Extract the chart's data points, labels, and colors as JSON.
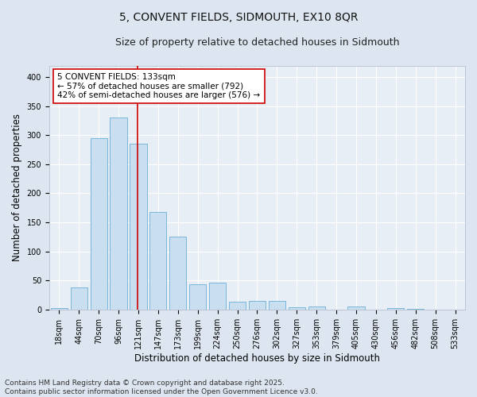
{
  "title_line1": "5, CONVENT FIELDS, SIDMOUTH, EX10 8QR",
  "title_line2": "Size of property relative to detached houses in Sidmouth",
  "xlabel": "Distribution of detached houses by size in Sidmouth",
  "ylabel": "Number of detached properties",
  "categories": [
    "18sqm",
    "44sqm",
    "70sqm",
    "96sqm",
    "121sqm",
    "147sqm",
    "173sqm",
    "199sqm",
    "224sqm",
    "250sqm",
    "276sqm",
    "302sqm",
    "327sqm",
    "353sqm",
    "379sqm",
    "405sqm",
    "430sqm",
    "456sqm",
    "482sqm",
    "508sqm",
    "533sqm"
  ],
  "values": [
    2,
    38,
    295,
    330,
    285,
    168,
    125,
    44,
    46,
    14,
    15,
    15,
    4,
    5,
    0,
    5,
    0,
    2,
    1,
    0,
    0
  ],
  "bar_color": "#c9dff0",
  "bar_edge_color": "#6aaed6",
  "vline_color": "#cc0000",
  "vline_pos": 3.96,
  "annotation_text": "5 CONVENT FIELDS: 133sqm\n← 57% of detached houses are smaller (792)\n42% of semi-detached houses are larger (576) →",
  "annotation_box_facecolor": "#ffffff",
  "annotation_box_edgecolor": "#cc0000",
  "ylim": [
    0,
    420
  ],
  "yticks": [
    0,
    50,
    100,
    150,
    200,
    250,
    300,
    350,
    400
  ],
  "fig_bg_color": "#dde6f0",
  "plot_bg_color": "#e8eef5",
  "grid_color": "#ffffff",
  "title_fontsize": 10,
  "subtitle_fontsize": 9,
  "axis_label_fontsize": 8.5,
  "tick_fontsize": 7,
  "annotation_fontsize": 7.5,
  "footer_fontsize": 6.5,
  "footer_text": "Contains HM Land Registry data © Crown copyright and database right 2025.\nContains public sector information licensed under the Open Government Licence v3.0."
}
